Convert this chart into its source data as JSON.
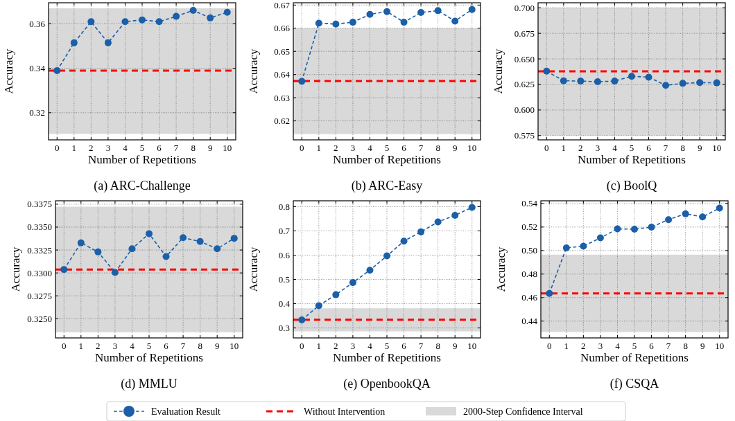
{
  "chart_data": [
    {
      "type": "line",
      "title": "(a) ARC-Challenge",
      "xlabel": "Number of Repetitions",
      "ylabel": "Accuracy",
      "x": [
        0,
        1,
        2,
        3,
        4,
        5,
        6,
        7,
        8,
        9,
        10
      ],
      "xlim": [
        -0.5,
        10.5
      ],
      "xticks": [
        0,
        1,
        2,
        3,
        4,
        5,
        6,
        7,
        8,
        9,
        10
      ],
      "ylim": [
        0.3078,
        0.3694
      ],
      "yticks": [
        0.32,
        0.34,
        0.36
      ],
      "grid": true,
      "marker": "circle",
      "line_style": "dashed",
      "legend": "bottom",
      "series": [
        {
          "name": "Evaluation Result",
          "color": "#1a5fa8",
          "values": [
            0.3389,
            0.3514,
            0.3609,
            0.3514,
            0.3609,
            0.3617,
            0.3609,
            0.3633,
            0.366,
            0.3626,
            0.3651
          ]
        }
      ],
      "ref_lines": [
        {
          "axis": "y",
          "value": 0.3389,
          "label": "Without Intervention",
          "color": "#ff0000",
          "line_style": "dashed"
        }
      ],
      "bands": [
        {
          "axis": "y",
          "from": 0.3105,
          "to": 0.3669,
          "label": "2000-Step Confidence Interval",
          "color": "#d9d9d9"
        }
      ]
    },
    {
      "type": "line",
      "title": "(b) ARC-Easy",
      "xlabel": "Number of Repetitions",
      "ylabel": "Accuracy",
      "x": [
        0,
        1,
        2,
        3,
        4,
        5,
        6,
        7,
        8,
        9,
        10
      ],
      "xlim": [
        -0.5,
        10.5
      ],
      "xticks": [
        0,
        1,
        2,
        3,
        4,
        5,
        6,
        7,
        8,
        9,
        10
      ],
      "ylim": [
        0.6118,
        0.671
      ],
      "yticks": [
        0.62,
        0.63,
        0.64,
        0.65,
        0.66,
        0.67
      ],
      "grid": true,
      "marker": "circle",
      "line_style": "dashed",
      "series": [
        {
          "color": "#1a5fa8",
          "values": [
            0.6371,
            0.6622,
            0.6618,
            0.6626,
            0.666,
            0.6672,
            0.6626,
            0.6668,
            0.6676,
            0.6631,
            0.6681
          ]
        }
      ],
      "ref_lines": [
        {
          "axis": "y",
          "value": 0.6372,
          "color": "#ff0000",
          "line_style": "dashed"
        }
      ],
      "bands": [
        {
          "axis": "y",
          "from": 0.6143,
          "to": 0.66,
          "color": "#d9d9d9"
        }
      ]
    },
    {
      "type": "line",
      "title": "(c) BoolQ",
      "xlabel": "Number of Repetitions",
      "ylabel": "Accuracy",
      "x": [
        0,
        1,
        2,
        3,
        4,
        5,
        6,
        7,
        8,
        9,
        10
      ],
      "xlim": [
        -0.5,
        10.5
      ],
      "xticks": [
        0,
        1,
        2,
        3,
        4,
        5,
        6,
        7,
        8,
        9,
        10
      ],
      "ylim": [
        0.5708,
        0.7049
      ],
      "yticks": [
        0.575,
        {
          "value": 0.6,
          "label": "0.600"
        },
        0.625,
        {
          "value": 0.65,
          "label": "0.650"
        },
        0.675,
        {
          "value": 0.7,
          "label": "0.700"
        }
      ],
      "grid": true,
      "marker": "circle",
      "line_style": "dashed",
      "series": [
        {
          "color": "#1a5fa8",
          "values": [
            0.638,
            0.6286,
            0.6283,
            0.6277,
            0.6283,
            0.633,
            0.6321,
            0.6241,
            0.6261,
            0.6268,
            0.6266
          ]
        }
      ],
      "ref_lines": [
        {
          "axis": "y",
          "value": 0.6378,
          "color": "#ff0000",
          "line_style": "dashed"
        }
      ],
      "bands": [
        {
          "axis": "y",
          "from": 0.575,
          "to": 0.7,
          "color": "#d9d9d9"
        }
      ]
    },
    {
      "type": "line",
      "title": "(d) MMLU",
      "xlabel": "Number of Repetitions",
      "ylabel": "Accuracy",
      "x": [
        0,
        1,
        2,
        3,
        4,
        5,
        6,
        7,
        8,
        9,
        10
      ],
      "xlim": [
        -0.5,
        10.5
      ],
      "xticks": [
        0,
        1,
        2,
        3,
        4,
        5,
        6,
        7,
        8,
        9,
        10
      ],
      "ylim": [
        0.32291,
        0.33787
      ],
      "yticks": [
        {
          "value": 0.325,
          "label": "0.3250"
        },
        0.3275,
        {
          "value": 0.33,
          "label": "0.3300"
        },
        0.3325,
        {
          "value": 0.335,
          "label": "0.3350"
        },
        0.3375
      ],
      "grid": true,
      "marker": "circle",
      "line_style": "dashed",
      "series": [
        {
          "color": "#1a5fa8",
          "values": [
            0.33038,
            0.33328,
            0.33229,
            0.33005,
            0.33264,
            0.33428,
            0.33179,
            0.33385,
            0.33343,
            0.33264,
            0.33378
          ]
        }
      ],
      "ref_lines": [
        {
          "axis": "y",
          "value": 0.33038,
          "color": "#ff0000",
          "line_style": "dashed"
        }
      ],
      "bands": [
        {
          "axis": "y",
          "from": 0.32353,
          "to": 0.33723,
          "color": "#d9d9d9"
        }
      ]
    },
    {
      "type": "line",
      "title": "(e) OpenbookQA",
      "xlabel": "Number of Repetitions",
      "ylabel": "Accuracy",
      "x": [
        0,
        1,
        2,
        3,
        4,
        5,
        6,
        7,
        8,
        9,
        10
      ],
      "xlim": [
        -0.5,
        10.5
      ],
      "xticks": [
        0,
        1,
        2,
        3,
        4,
        5,
        6,
        7,
        8,
        9,
        10
      ],
      "ylim": [
        0.259,
        0.824
      ],
      "yticks": [
        0.3,
        0.4,
        0.5,
        0.6,
        0.7,
        0.8
      ],
      "grid": true,
      "marker": "circle",
      "line_style": "dashed",
      "series": [
        {
          "color": "#1a5fa8",
          "values": [
            0.333,
            0.392,
            0.437,
            0.487,
            0.538,
            0.597,
            0.658,
            0.696,
            0.737,
            0.764,
            0.797
          ]
        }
      ],
      "ref_lines": [
        {
          "axis": "y",
          "value": 0.334,
          "color": "#ff0000",
          "line_style": "dashed"
        }
      ],
      "bands": [
        {
          "axis": "y",
          "from": 0.286,
          "to": 0.381,
          "color": "#d9d9d9"
        }
      ]
    },
    {
      "type": "line",
      "title": "(f) CSQA",
      "xlabel": "Number of Repetitions",
      "ylabel": "Accuracy",
      "x": [
        0,
        1,
        2,
        3,
        4,
        5,
        6,
        7,
        8,
        9,
        10
      ],
      "xlim": [
        -0.5,
        10.5
      ],
      "xticks": [
        0,
        1,
        2,
        3,
        4,
        5,
        6,
        7,
        8,
        9,
        10
      ],
      "ylim": [
        0.4257,
        0.5423
      ],
      "yticks": [
        0.44,
        0.46,
        0.48,
        {
          "value": 0.5,
          "label": "0.50"
        },
        0.52,
        0.54
      ],
      "grid": true,
      "marker": "circle",
      "line_style": "dashed",
      "series": [
        {
          "color": "#1a5fa8",
          "values": [
            0.4635,
            0.5023,
            0.5037,
            0.5108,
            0.5184,
            0.5182,
            0.5199,
            0.5263,
            0.5313,
            0.5286,
            0.5361
          ]
        }
      ],
      "ref_lines": [
        {
          "axis": "y",
          "value": 0.4635,
          "color": "#ff0000",
          "line_style": "dashed"
        }
      ],
      "bands": [
        {
          "axis": "y",
          "from": 0.4307,
          "to": 0.4965,
          "color": "#d9d9d9"
        }
      ]
    }
  ]
}
